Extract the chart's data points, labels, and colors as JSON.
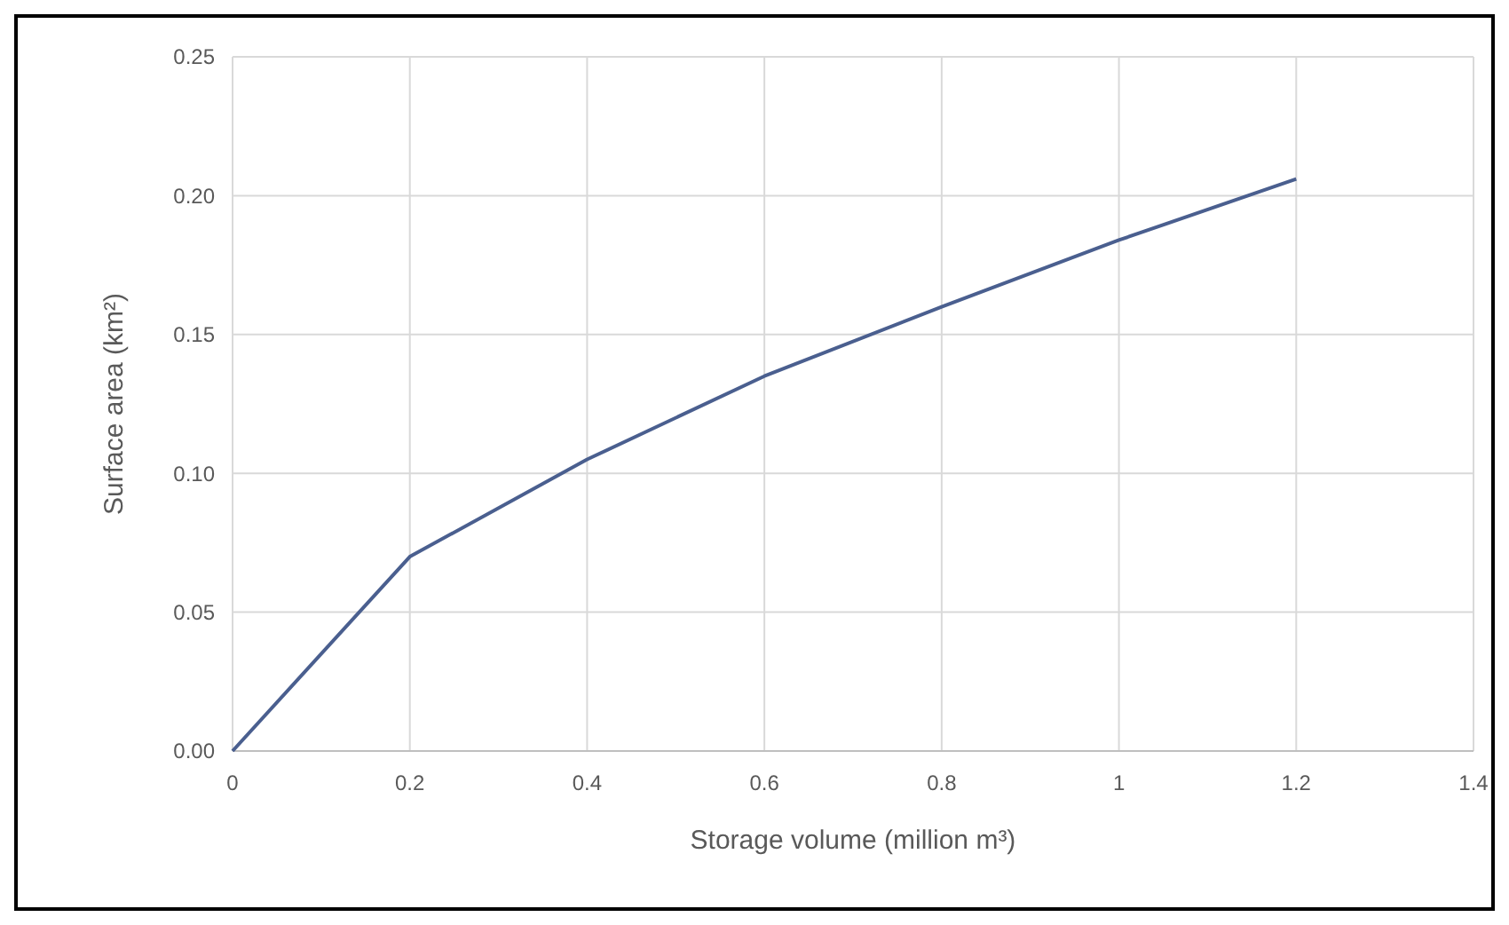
{
  "chart_data": {
    "type": "line",
    "xlabel": "Storage volume (million m³)",
    "ylabel": "Surface area (km²)",
    "x": [
      0,
      0.2,
      0.4,
      0.6,
      0.8,
      1.0,
      1.2
    ],
    "series": [
      {
        "color": "#4a5f8f",
        "values": [
          0,
          0.07,
          0.105,
          0.135,
          0.16,
          0.184,
          0.206
        ]
      }
    ],
    "xlim": [
      0,
      1.4
    ],
    "xticks": [
      0,
      0.2,
      0.4,
      0.6,
      0.8,
      1,
      1.2,
      1.4
    ],
    "ylim": [
      0,
      0.25
    ],
    "yticks": [
      {
        "value": 0,
        "label": "0.00"
      },
      {
        "value": 0.05,
        "label": "0.05"
      },
      {
        "value": 0.1,
        "label": "0.10"
      },
      {
        "value": 0.15,
        "label": "0.15"
      },
      {
        "value": 0.2,
        "label": "0.20"
      },
      {
        "value": 0.25,
        "label": "0.25"
      }
    ],
    "grid": true,
    "marker": "none",
    "line_style": "solid"
  }
}
